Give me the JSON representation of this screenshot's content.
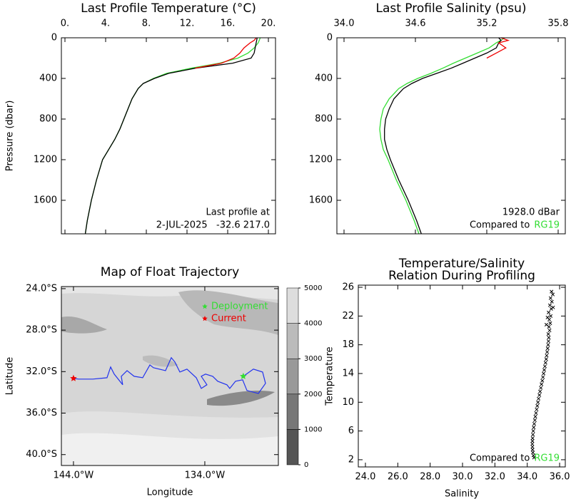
{
  "chart_data": [
    {
      "type": "profile",
      "title": "Last Profile Temperature (°C)",
      "y_label": "Pressure (dbar)",
      "xaxis_position": "top",
      "y_inverted": true,
      "xlim": [
        -0.35,
        20.7
      ],
      "ylim": [
        0,
        1930
      ],
      "xticks": [
        {
          "value": 0,
          "label": "0."
        },
        {
          "value": 4,
          "label": "4."
        },
        {
          "value": 8,
          "label": "8."
        },
        {
          "value": 12,
          "label": "12."
        },
        {
          "value": 16,
          "label": "16."
        },
        {
          "value": 20,
          "label": "20."
        }
      ],
      "yticks": [
        0,
        400,
        800,
        1200,
        1600
      ],
      "pressure": [
        0,
        25,
        50,
        100,
        150,
        200,
        250,
        300,
        350,
        400,
        450,
        500,
        600,
        700,
        800,
        900,
        1000,
        1100,
        1200,
        1400,
        1600,
        1800,
        1930
      ],
      "series": [
        {
          "color": "#33dd33",
          "values": [
            19.2,
            19.1,
            19.0,
            18.6,
            18.0,
            17.0,
            15.2,
            12.4,
            10.0,
            8.7,
            7.7,
            7.2,
            6.6,
            6.2,
            5.8,
            5.4,
            4.9,
            4.3,
            3.7,
            3.1,
            2.6,
            2.2,
            2.0
          ]
        },
        {
          "color": "#000000",
          "values": [
            18.9,
            18.85,
            18.8,
            18.7,
            18.6,
            18.3,
            16.5,
            12.8,
            10.2,
            8.8,
            7.7,
            7.2,
            6.6,
            6.2,
            5.8,
            5.4,
            4.9,
            4.3,
            3.7,
            3.1,
            2.6,
            2.2,
            2.0
          ]
        },
        {
          "color": "#ee0000",
          "values": [
            18.8,
            18.6,
            18.2,
            17.6,
            17.2,
            16.6,
            15.4,
            12.8,
            null,
            null,
            null,
            null,
            null,
            null,
            null,
            null,
            null,
            null,
            null,
            null,
            null,
            null,
            null
          ]
        }
      ],
      "notes": [
        "Last profile at",
        "2-JUL-2025   -32.6 217.0"
      ]
    },
    {
      "type": "profile",
      "title": "Last Profile Salinity (psu)",
      "xaxis_position": "top",
      "y_inverted": true,
      "xlim": [
        33.94,
        35.86
      ],
      "ylim": [
        0,
        1930
      ],
      "xticks": [
        {
          "value": 34.0,
          "label": "34.0"
        },
        34.6,
        35.2,
        35.8
      ],
      "yticks": [
        0,
        400,
        800,
        1200,
        1600
      ],
      "pressure": [
        0,
        25,
        50,
        100,
        150,
        200,
        250,
        300,
        350,
        400,
        450,
        500,
        600,
        700,
        800,
        900,
        1000,
        1100,
        1200,
        1400,
        1600,
        1800,
        1930
      ],
      "series": [
        {
          "color": "#33dd33",
          "values": [
            35.35,
            35.32,
            35.28,
            35.22,
            35.12,
            35.02,
            34.92,
            34.83,
            34.73,
            34.62,
            34.53,
            34.46,
            34.38,
            34.33,
            34.31,
            34.3,
            34.31,
            34.33,
            34.37,
            34.44,
            34.52,
            34.59,
            34.63
          ]
        },
        {
          "color": "#000000",
          "values": [
            35.3,
            35.32,
            35.3,
            35.28,
            35.2,
            35.1,
            35.0,
            34.9,
            34.78,
            34.66,
            34.57,
            34.5,
            34.42,
            34.38,
            34.35,
            34.34,
            34.34,
            34.36,
            34.39,
            34.46,
            34.54,
            34.61,
            34.65
          ]
        },
        {
          "color": "#ee0000",
          "values": [
            35.32,
            35.38,
            35.3,
            35.36,
            35.28,
            35.2,
            null,
            null,
            null,
            null,
            null,
            null,
            null,
            null,
            null,
            null,
            null,
            null,
            null,
            null,
            null,
            null,
            null
          ]
        }
      ],
      "notes": [
        "1928.0 dBar"
      ],
      "compare": {
        "prefix": "Compared to",
        "name": "RG19",
        "color": "#33dd33"
      }
    },
    {
      "type": "map",
      "title": "Map of Float Trajectory",
      "x_label": "Longitude",
      "y_label": "Latitude",
      "xlim": [
        -144.92,
        -128.4
      ],
      "ylim": [
        -41.05,
        -23.8
      ],
      "xticks": [
        {
          "value": -144,
          "label": "144.0°W"
        },
        {
          "value": -134,
          "label": "134.0°W"
        }
      ],
      "yticks": [
        {
          "value": -24,
          "label": "24.0°S"
        },
        {
          "value": -28,
          "label": "28.0°S"
        },
        {
          "value": -32,
          "label": "32.0°S"
        },
        {
          "value": -36,
          "label": "36.0°S"
        },
        {
          "value": -40,
          "label": "40.0°S"
        }
      ],
      "track": {
        "color": "#2233ee",
        "lon": [
          -131.07,
          -130.3,
          -129.6,
          -129.38,
          -129.92,
          -130.79,
          -131.12,
          -131.66,
          -132.1,
          -132.32,
          -133.02,
          -133.4,
          -133.95,
          -134.27,
          -133.84,
          -134.27,
          -134.65,
          -135.36,
          -135.9,
          -136.28,
          -136.55,
          -136.99,
          -137.91,
          -138.18,
          -138.73,
          -139.38,
          -139.92,
          -140.36,
          -140.25,
          -140.9,
          -141.17,
          -141.45,
          -142.53,
          -143.62,
          -144.0
        ],
        "lat": [
          -32.45,
          -31.76,
          -32.04,
          -33.13,
          -34.1,
          -33.82,
          -32.79,
          -32.93,
          -33.62,
          -33.27,
          -32.93,
          -32.45,
          -32.24,
          -32.45,
          -33.27,
          -33.62,
          -32.59,
          -31.76,
          -32.04,
          -31.07,
          -30.66,
          -31.9,
          -31.62,
          -31.35,
          -32.59,
          -32.45,
          -31.9,
          -32.45,
          -33.27,
          -32.24,
          -31.55,
          -32.59,
          -32.72,
          -32.72,
          -32.65
        ]
      },
      "markers": [
        {
          "name": "Deployment",
          "color": "#33dd33",
          "lon": -131.07,
          "lat": -32.45
        },
        {
          "name": "Current",
          "color": "#ee0000",
          "lon": -144.0,
          "lat": -32.65
        }
      ],
      "colorbar": {
        "ticks": [
          0,
          1000,
          2000,
          3000,
          4000,
          5000
        ],
        "colors": [
          "#555555",
          "#777777",
          "#999999",
          "#bbbbbb",
          "#dddddd"
        ]
      }
    },
    {
      "type": "scatter",
      "title": "Temperature/Salinity",
      "subtitle": "Relation During Profiling",
      "x_label": "Salinity",
      "y_label": "Temperature",
      "xlim": [
        23.56,
        36.35
      ],
      "ylim": [
        1.0,
        26.3
      ],
      "xticks": [
        {
          "value": 24,
          "label": "24.0"
        },
        {
          "value": 26,
          "label": "26.0"
        },
        {
          "value": 28,
          "label": "28.0"
        },
        {
          "value": 30,
          "label": "30.0"
        },
        {
          "value": 32,
          "label": "32.0"
        },
        {
          "value": 34,
          "label": "34.0"
        },
        {
          "value": 36,
          "label": "36.0"
        }
      ],
      "yticks": [
        2,
        6,
        10,
        14,
        18,
        22,
        26
      ],
      "color": "#000000",
      "x": [
        34.42,
        34.38,
        34.35,
        34.33,
        34.32,
        34.31,
        34.32,
        34.33,
        34.35,
        34.37,
        34.4,
        34.43,
        34.47,
        34.5,
        34.54,
        34.58,
        34.62,
        34.66,
        34.7,
        34.75,
        34.79,
        34.84,
        34.88,
        34.93,
        34.97,
        35.01,
        35.05,
        35.09,
        35.13,
        35.17,
        35.2,
        35.23,
        35.26,
        35.29,
        35.31,
        35.33,
        35.3,
        35.38,
        35.34,
        35.42,
        35.36,
        35.45,
        35.32,
        35.48,
        35.4,
        35.52,
        35.44,
        35.58,
        35.5,
        35.25,
        35.6,
        35.18
      ],
      "y": [
        2.3,
        2.6,
        3.0,
        3.4,
        3.8,
        4.2,
        4.6,
        5.0,
        5.5,
        6.0,
        6.5,
        7.0,
        7.5,
        8.0,
        8.5,
        9.0,
        9.5,
        10.0,
        10.5,
        11.0,
        11.5,
        12.0,
        12.5,
        13.0,
        13.5,
        14.0,
        14.5,
        15.0,
        15.5,
        16.0,
        16.5,
        17.0,
        17.5,
        18.0,
        18.5,
        19.0,
        19.5,
        20.0,
        20.5,
        21.0,
        21.5,
        22.0,
        22.5,
        23.0,
        23.5,
        24.0,
        24.5,
        25.0,
        25.4,
        21.8,
        23.2,
        20.8
      ],
      "compare": {
        "prefix": "Compared to",
        "name": "RG19",
        "color": "#33dd33"
      }
    }
  ]
}
